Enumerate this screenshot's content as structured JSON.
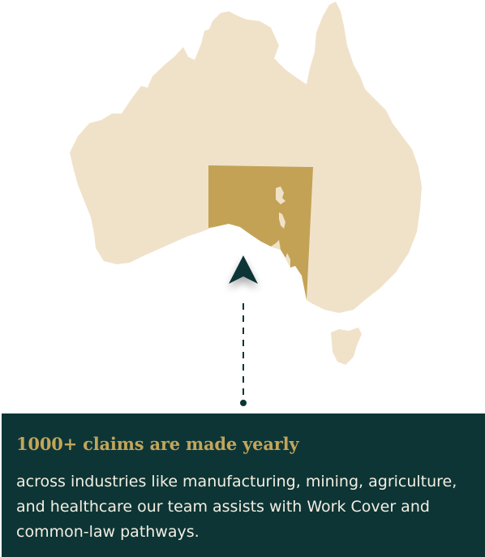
{
  "map": {
    "highlighted_region": "South Australia",
    "colors": {
      "land": "#f0e2c9",
      "highlight": "#c3a256",
      "marker": "#0d3535"
    },
    "marker_icon": "location-arrow-icon"
  },
  "info": {
    "headline": "1000+ claims are made yearly",
    "body": "across industries like manufacturing, mining, agriculture, and healthcare our team assists with Work Cover and common-law pathways.",
    "background_color": "#0d3535",
    "headline_color": "#c3a55a",
    "body_color": "#f3eee2"
  }
}
